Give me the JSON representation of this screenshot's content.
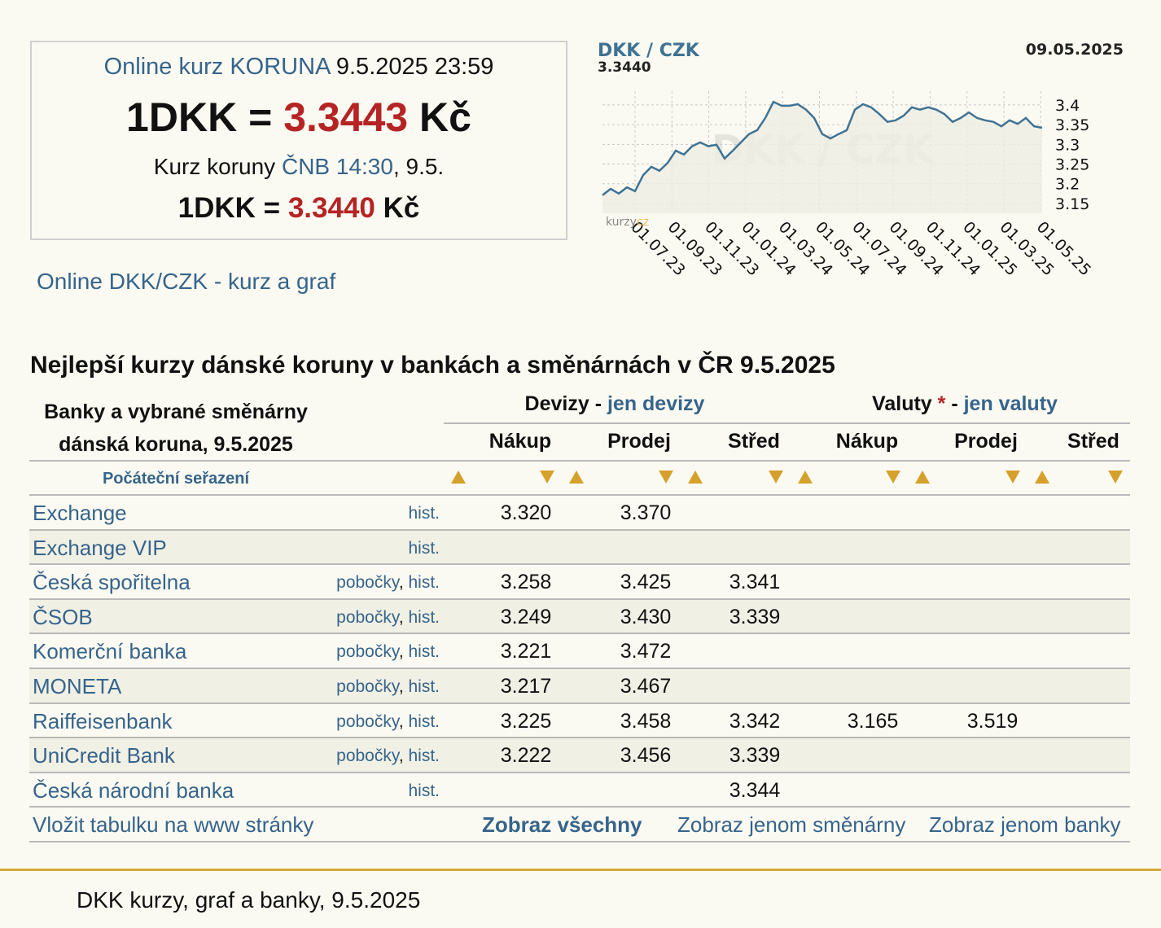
{
  "header": {
    "online_label": "Online kurz KORUNA",
    "online_time": "9.5.2025 23:59",
    "online_lhs": "1DKK =",
    "online_rate": "3.3443",
    "online_unit": "Kč",
    "cnb_prefix": "Kurz koruny",
    "cnb_link": "ČNB 14:30",
    "cnb_suffix": ", 9.5.",
    "cnb_lhs": "1DKK =",
    "cnb_rate": "3.3440",
    "cnb_unit": "Kč"
  },
  "graph_link": "Online DKK/CZK - kurz a graf",
  "chart": {
    "type": "line",
    "pair": "DKK / CZK",
    "last": "3.3440",
    "date": "09.05.2025",
    "watermark": "DKK / CZK",
    "logo": "kurzy",
    "logo_suffix": "cz",
    "color": "#3f7394",
    "grid": true,
    "values": [
      3.171,
      3.187,
      3.175,
      3.191,
      3.181,
      3.222,
      3.243,
      3.233,
      3.253,
      3.284,
      3.274,
      3.295,
      3.305,
      3.295,
      3.299,
      3.264,
      3.284,
      3.305,
      3.326,
      3.336,
      3.367,
      3.408,
      3.398,
      3.398,
      3.402,
      3.388,
      3.367,
      3.326,
      3.315,
      3.326,
      3.336,
      3.388,
      3.402,
      3.394,
      3.377,
      3.357,
      3.361,
      3.373,
      3.394,
      3.388,
      3.394,
      3.388,
      3.377,
      3.357,
      3.367,
      3.381,
      3.367,
      3.361,
      3.357,
      3.346,
      3.361,
      3.352,
      3.367,
      3.346,
      3.342
    ],
    "ylim": [
      3.125,
      3.435
    ],
    "yticks": [
      3.15,
      3.2,
      3.25,
      3.3,
      3.35,
      3.4
    ],
    "xticks": [
      "01.07.23",
      "01.09.23",
      "01.11.23",
      "01.01.24",
      "01.03.24",
      "01.05.24",
      "01.07.24",
      "01.09.24",
      "01.11.24",
      "01.01.25",
      "01.03.25",
      "01.05.25"
    ]
  },
  "table": {
    "title": "Nejlepší kurzy dánské koruny v bankách a směnárnách v ČR 9.5.2025",
    "corner_1": "Banky a vybrané směnárny",
    "corner_2": "dánská koruna, 9.5.2025",
    "group_1": "Devizy",
    "group_1_sep": " - ",
    "group_1_link": "jen devizy",
    "group_2": "Valuty",
    "group_2_star": "*",
    "group_2_sep": " - ",
    "group_2_link": "jen valuty",
    "columns": [
      "Nákup",
      "Prodej",
      "Střed",
      "Nákup",
      "Prodej",
      "Střed"
    ],
    "sort_reset": "Počáteční seřazení",
    "link_separator": ", ",
    "rows": [
      {
        "name": "Exchange",
        "links": [
          "hist."
        ],
        "values": [
          "3.320",
          "3.370",
          null,
          null,
          null,
          null
        ]
      },
      {
        "name": "Exchange VIP",
        "links": [
          "hist."
        ],
        "values": [
          null,
          null,
          null,
          null,
          null,
          null
        ]
      },
      {
        "name": "Česká spořitelna",
        "links": [
          "pobočky",
          "hist."
        ],
        "values": [
          "3.258",
          "3.425",
          "3.341",
          null,
          null,
          null
        ]
      },
      {
        "name": "ČSOB",
        "links": [
          "pobočky",
          "hist."
        ],
        "values": [
          "3.249",
          "3.430",
          "3.339",
          null,
          null,
          null
        ]
      },
      {
        "name": "Komerční banka",
        "links": [
          "pobočky",
          "hist."
        ],
        "values": [
          "3.221",
          "3.472",
          null,
          null,
          null,
          null
        ]
      },
      {
        "name": "MONETA",
        "links": [
          "pobočky",
          "hist."
        ],
        "values": [
          "3.217",
          "3.467",
          null,
          null,
          null,
          null
        ]
      },
      {
        "name": "Raiffeisenbank",
        "links": [
          "pobočky",
          "hist."
        ],
        "values": [
          "3.225",
          "3.458",
          "3.342",
          "3.165",
          "3.519",
          null
        ]
      },
      {
        "name": "UniCredit Bank",
        "links": [
          "pobočky",
          "hist."
        ],
        "values": [
          "3.222",
          "3.456",
          "3.339",
          null,
          null,
          null
        ]
      },
      {
        "name": "Česká národní banka",
        "links": [
          "hist."
        ],
        "values": [
          null,
          null,
          "3.344",
          null,
          null,
          null
        ]
      }
    ],
    "footer": {
      "embed": "Vložit tabulku na www stránky",
      "show_all": "Zobraz všechny",
      "show_exchanges": "Zobraz jenom směnárny",
      "show_banks": "Zobraz jenom banky"
    }
  },
  "footer": "DKK kurzy, graf a banky, 9.5.2025"
}
